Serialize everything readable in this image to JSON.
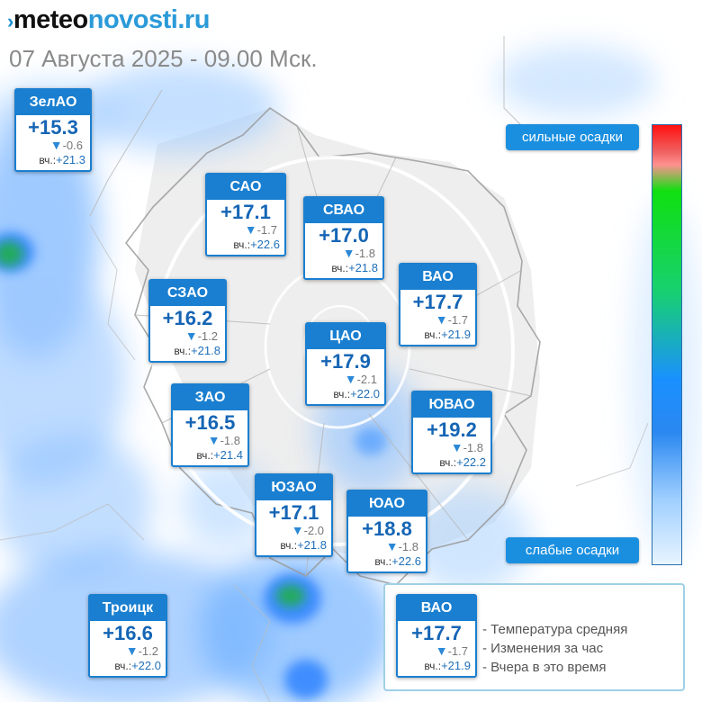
{
  "brand": {
    "mark": "›",
    "part1": "meteo",
    "part2": "novosti.ru"
  },
  "subtitle": "07 Августа 2025 - 09.00 Мск.",
  "yesterday_prefix": "вч.:",
  "change_arrow": "▼",
  "colors": {
    "card_header": "#1a7fd0",
    "temperature": "#1565b5",
    "precip_light": "#bcdcff",
    "precip_mid": "#4e9cff",
    "precip_heavy": "#1fae4a"
  },
  "scale": {
    "strong": "сильные осадки",
    "weak": "слабые осадки"
  },
  "districts": [
    {
      "name": "ЗелАО",
      "temp": "+15.3",
      "change": "-0.6",
      "yesterday": "+21.3"
    },
    {
      "name": "САО",
      "temp": "+17.1",
      "change": "-1.7",
      "yesterday": "+22.6"
    },
    {
      "name": "СВАО",
      "temp": "+17.0",
      "change": "-1.8",
      "yesterday": "+21.8"
    },
    {
      "name": "ВАО",
      "temp": "+17.7",
      "change": "-1.7",
      "yesterday": "+21.9"
    },
    {
      "name": "СЗАО",
      "temp": "+16.2",
      "change": "-1.2",
      "yesterday": "+21.8"
    },
    {
      "name": "ЦАО",
      "temp": "+17.9",
      "change": "-2.1",
      "yesterday": "+22.0"
    },
    {
      "name": "ЗАО",
      "temp": "+16.5",
      "change": "-1.8",
      "yesterday": "+21.4"
    },
    {
      "name": "ЮВАО",
      "temp": "+19.2",
      "change": "-1.8",
      "yesterday": "+22.2"
    },
    {
      "name": "ЮЗАО",
      "temp": "+17.1",
      "change": "-2.0",
      "yesterday": "+21.8"
    },
    {
      "name": "ЮАО",
      "temp": "+18.8",
      "change": "-1.8",
      "yesterday": "+22.6"
    },
    {
      "name": "Троицк",
      "temp": "+16.6",
      "change": "-1.2",
      "yesterday": "+22.0"
    }
  ],
  "legend": {
    "sample": {
      "name": "ВАО",
      "temp": "+17.7",
      "change": "-1.7",
      "yesterday": "+21.9"
    },
    "items": [
      "- Температура средняя",
      "- Изменения за час",
      "- Вчера в это время"
    ]
  }
}
